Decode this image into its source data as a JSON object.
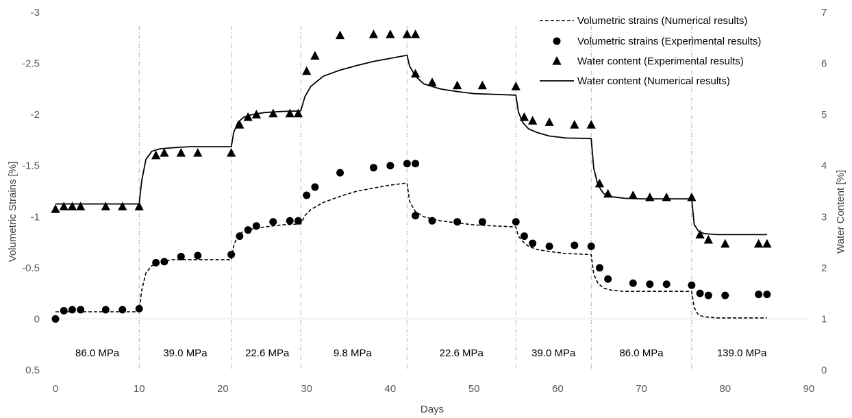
{
  "chart_data": {
    "type": "line",
    "xlabel": "Days",
    "ylabel": "Volumetric Strains [%]",
    "y2label": "Water Content [%]",
    "xlim": [
      0,
      90
    ],
    "ylim": [
      -3,
      0.5
    ],
    "y2lim": [
      0,
      7
    ],
    "y_axis_inverted": true,
    "x_ticks": [
      "0",
      "10",
      "20",
      "30",
      "40",
      "50",
      "60",
      "70",
      "80",
      "90"
    ],
    "y_ticks": [
      "-3",
      "-2.5",
      "-2",
      "-1.5",
      "-1",
      "-0.5",
      "0",
      "0.5"
    ],
    "y2_ticks": [
      "7",
      "6",
      "5",
      "4",
      "3",
      "2",
      "1",
      "0"
    ],
    "grid": false,
    "legend_position": "top-right",
    "stage_boundaries": [
      10,
      21,
      29.3,
      42,
      55,
      64,
      76
    ],
    "stage_labels": [
      {
        "x": 5,
        "text": "86.0 MPa"
      },
      {
        "x": 15.5,
        "text": "39.0 MPa"
      },
      {
        "x": 25.3,
        "text": "22.6 MPa"
      },
      {
        "x": 35.5,
        "text": "9.8 MPa"
      },
      {
        "x": 48.5,
        "text": "22.6 MPa"
      },
      {
        "x": 59.5,
        "text": "39.0 MPa"
      },
      {
        "x": 70,
        "text": "86.0 MPa"
      },
      {
        "x": 82,
        "text": "139.0 MPa"
      }
    ],
    "series": [
      {
        "name": "Volumetric strains (Numerical results)",
        "kind": "line",
        "style": "dashed",
        "axis": "left",
        "x": [
          0,
          10,
          10.3,
          10.8,
          11.5,
          12.5,
          14,
          16,
          21,
          21.3,
          21.8,
          22.5,
          23.5,
          25,
          27,
          29.3,
          29.8,
          30.5,
          32,
          34,
          36,
          38,
          40,
          42,
          42.3,
          43,
          44,
          46,
          48,
          50,
          55,
          55.3,
          55.8,
          56.5,
          57.5,
          59,
          61,
          64,
          64.3,
          64.8,
          65.5,
          66.5,
          68,
          70,
          76,
          76.3,
          76.8,
          77.5,
          79,
          85
        ],
        "y": [
          -0.07,
          -0.07,
          -0.28,
          -0.45,
          -0.52,
          -0.56,
          -0.58,
          -0.58,
          -0.58,
          -0.72,
          -0.82,
          -0.86,
          -0.88,
          -0.9,
          -0.92,
          -0.93,
          -1.01,
          -1.07,
          -1.14,
          -1.2,
          -1.25,
          -1.28,
          -1.31,
          -1.33,
          -1.15,
          -1.05,
          -1.0,
          -0.96,
          -0.94,
          -0.92,
          -0.9,
          -0.81,
          -0.76,
          -0.71,
          -0.68,
          -0.66,
          -0.64,
          -0.63,
          -0.44,
          -0.35,
          -0.3,
          -0.28,
          -0.27,
          -0.27,
          -0.27,
          -0.11,
          -0.04,
          -0.02,
          -0.01,
          -0.01
        ]
      },
      {
        "name": "Volumetric strains (Experimental results)",
        "kind": "scatter",
        "marker": "circle",
        "axis": "left",
        "x": [
          0,
          1,
          2,
          3,
          6,
          8,
          10,
          12,
          13,
          15,
          17,
          21,
          22,
          23,
          24,
          26,
          28,
          29,
          30,
          31,
          34,
          38,
          40,
          42,
          43,
          43,
          45,
          48,
          51,
          55,
          56,
          57,
          59,
          62,
          64,
          65,
          66,
          69,
          71,
          73,
          76,
          77,
          78,
          80,
          84,
          85
        ],
        "y": [
          0,
          -0.08,
          -0.09,
          -0.09,
          -0.09,
          -0.09,
          -0.1,
          -0.55,
          -0.56,
          -0.61,
          -0.62,
          -0.63,
          -0.81,
          -0.87,
          -0.91,
          -0.95,
          -0.96,
          -0.96,
          -1.21,
          -1.29,
          -1.43,
          -1.48,
          -1.5,
          -1.52,
          -1.52,
          -1.01,
          -0.96,
          -0.95,
          -0.95,
          -0.95,
          -0.81,
          -0.74,
          -0.71,
          -0.72,
          -0.71,
          -0.5,
          -0.39,
          -0.35,
          -0.34,
          -0.34,
          -0.33,
          -0.25,
          -0.23,
          -0.23,
          -0.24,
          -0.24
        ]
      },
      {
        "name": "Water content (Experimental results)",
        "kind": "scatter",
        "marker": "triangle",
        "axis": "right",
        "x": [
          0,
          1,
          2,
          3,
          6,
          8,
          10,
          12,
          13,
          15,
          17,
          21,
          22,
          23,
          24,
          26,
          28,
          29,
          30,
          31,
          34,
          38,
          40,
          42,
          43,
          43,
          45,
          48,
          51,
          55,
          56,
          57,
          59,
          62,
          64,
          65,
          66,
          69,
          71,
          73,
          76,
          77,
          78,
          80,
          84,
          85
        ],
        "y": [
          3.15,
          3.2,
          3.2,
          3.2,
          3.2,
          3.2,
          3.2,
          4.2,
          4.25,
          4.25,
          4.25,
          4.25,
          4.8,
          4.95,
          5.0,
          5.02,
          5.02,
          5.02,
          5.85,
          6.15,
          6.55,
          6.57,
          6.57,
          6.57,
          6.57,
          5.8,
          5.63,
          5.57,
          5.57,
          5.55,
          4.95,
          4.88,
          4.85,
          4.8,
          4.8,
          3.65,
          3.45,
          3.42,
          3.38,
          3.38,
          3.38,
          2.65,
          2.55,
          2.47,
          2.47,
          2.47
        ]
      },
      {
        "name": "Water content (Numerical results)",
        "kind": "line",
        "style": "solid",
        "axis": "right",
        "x": [
          0,
          10,
          10.3,
          10.8,
          11.5,
          12.5,
          14,
          16,
          21,
          21.3,
          21.8,
          22.5,
          23.5,
          25,
          27,
          29.3,
          29.8,
          30.5,
          32,
          34,
          36,
          38,
          40,
          42,
          42.3,
          43,
          44,
          46,
          48,
          50,
          55,
          55.3,
          55.8,
          56.5,
          57.5,
          59,
          61,
          64,
          64.3,
          64.8,
          65.5,
          66.5,
          68,
          70,
          76,
          76.3,
          76.8,
          77.5,
          79,
          85
        ],
        "y": [
          3.25,
          3.25,
          3.7,
          4.12,
          4.28,
          4.33,
          4.35,
          4.37,
          4.37,
          4.65,
          4.85,
          4.95,
          5.0,
          5.04,
          5.06,
          5.07,
          5.35,
          5.55,
          5.75,
          5.87,
          5.96,
          6.04,
          6.1,
          6.16,
          5.95,
          5.75,
          5.6,
          5.5,
          5.45,
          5.41,
          5.38,
          5.05,
          4.85,
          4.72,
          4.65,
          4.58,
          4.54,
          4.53,
          3.95,
          3.62,
          3.45,
          3.39,
          3.36,
          3.35,
          3.35,
          2.85,
          2.72,
          2.67,
          2.65,
          2.65
        ]
      }
    ]
  }
}
